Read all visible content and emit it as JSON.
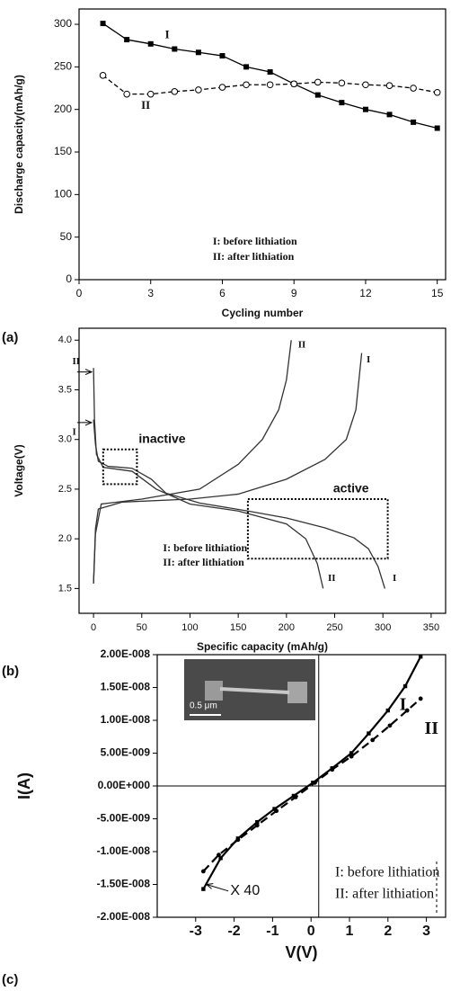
{
  "chart_data": [
    {
      "type": "line",
      "panel_label": "(a)",
      "xlabel": "Cycling number",
      "ylabel": "Discharge capacity(mAh/g)",
      "x": [
        1,
        2,
        3,
        4,
        5,
        6,
        7,
        8,
        9,
        10,
        11,
        12,
        13,
        14,
        15
      ],
      "xlim": [
        0,
        15.35
      ],
      "ylim": [
        0,
        318
      ],
      "xticks": [
        0,
        3,
        6,
        9,
        12,
        15
      ],
      "yticks": [
        0,
        50,
        100,
        150,
        200,
        250,
        300
      ],
      "series": [
        {
          "name": "I",
          "color": "#000000",
          "marker": "square",
          "line_style": "solid",
          "values": [
            301,
            282,
            277,
            271,
            267,
            263,
            250,
            244,
            230,
            217,
            208,
            200,
            194,
            185,
            178
          ]
        },
        {
          "name": "II",
          "color": "#000000",
          "marker": "open-circle",
          "line_style": "dashed",
          "values": [
            240,
            218,
            218,
            221,
            223,
            226,
            229,
            229,
            230,
            232,
            231,
            229,
            228,
            225,
            220
          ]
        }
      ],
      "annotations": [
        "I: before lithiation",
        "II: after lithiation"
      ]
    },
    {
      "type": "line",
      "panel_label": "(b)",
      "xlabel": "Specific capacity (mAh/g)",
      "ylabel": "Voltage(V)",
      "xlim": [
        -15,
        365
      ],
      "ylim": [
        1.25,
        4.12
      ],
      "xticks": [
        0,
        50,
        100,
        150,
        200,
        250,
        300,
        350
      ],
      "yticks": [
        1.5,
        {
          "value": 2,
          "label": "2.0"
        },
        2.5,
        {
          "value": 3,
          "label": "3.0"
        },
        3.5,
        {
          "value": 4,
          "label": "4.0"
        }
      ],
      "series": [
        {
          "name": "I",
          "color": "#333333",
          "line_style": "solid",
          "x": [
            0,
            2,
            5,
            15,
            40,
            60,
            75,
            110,
            160,
            200,
            240,
            270,
            285,
            295,
            302
          ],
          "values": [
            3.2,
            2.95,
            2.78,
            2.73,
            2.71,
            2.6,
            2.46,
            2.36,
            2.28,
            2.21,
            2.11,
            2.01,
            1.9,
            1.72,
            1.5
          ]
        },
        {
          "name": "I",
          "color": "#333333",
          "line_style": "solid",
          "x": [
            0,
            2,
            5,
            30,
            100,
            150,
            200,
            240,
            262,
            272,
            278
          ],
          "values": [
            1.55,
            2.1,
            2.3,
            2.37,
            2.4,
            2.45,
            2.6,
            2.8,
            3.0,
            3.3,
            3.87
          ]
        },
        {
          "name": "II",
          "color": "#333333",
          "line_style": "solid",
          "x": [
            0,
            1,
            3,
            10,
            40,
            65,
            100,
            150,
            200,
            220,
            232,
            238
          ],
          "values": [
            3.72,
            3.2,
            2.85,
            2.72,
            2.68,
            2.5,
            2.35,
            2.28,
            2.15,
            2.0,
            1.75,
            1.5
          ]
        },
        {
          "name": "II",
          "color": "#333333",
          "line_style": "solid",
          "x": [
            0,
            2,
            8,
            50,
            110,
            150,
            175,
            192,
            200,
            205
          ],
          "values": [
            1.55,
            2.05,
            2.35,
            2.4,
            2.5,
            2.75,
            3.0,
            3.3,
            3.6,
            4.0
          ]
        }
      ],
      "regions": [
        {
          "label": "inactive",
          "x": [
            10,
            45
          ],
          "y": [
            2.55,
            2.9
          ]
        },
        {
          "label": "active",
          "x": [
            160,
            305
          ],
          "y": [
            1.8,
            2.4
          ]
        }
      ],
      "annotations": [
        "I: before lithiation",
        "II: after lithiation"
      ]
    },
    {
      "type": "line",
      "panel_label": "(c)",
      "xlabel": "V(V)",
      "ylabel": "I(A)",
      "xlim": [
        -4,
        3.5
      ],
      "ylim": [
        -2e-08,
        2e-08
      ],
      "xticks": [
        -3,
        -2,
        -1,
        0,
        1,
        2,
        3
      ],
      "yticks": [
        {
          "value": -2e-08,
          "label": "-2.00E-008"
        },
        {
          "value": -1.5e-08,
          "label": "-1.50E-008"
        },
        {
          "value": -1e-08,
          "label": "-1.00E-008"
        },
        {
          "value": -5e-09,
          "label": "-5.00E-009"
        },
        {
          "value": 0,
          "label": "0.00E+000"
        },
        {
          "value": 5e-09,
          "label": "5.00E-009"
        },
        {
          "value": 1e-08,
          "label": "1.00E-008"
        },
        {
          "value": 1.5e-08,
          "label": "1.50E-008"
        },
        {
          "value": 2e-08,
          "label": "2.00E-008"
        }
      ],
      "crosshair": [
        0.2,
        0
      ],
      "series": [
        {
          "name": "I",
          "color": "#000000",
          "marker": "square",
          "line_style": "solid",
          "x": [
            -2.8,
            -2.35,
            -1.9,
            -1.4,
            -0.95,
            -0.45,
            0.05,
            0.55,
            1.05,
            1.5,
            2.0,
            2.45,
            2.85
          ],
          "values": [
            -1.57e-08,
            -1.1e-08,
            -8e-09,
            -5.5e-09,
            -3.5e-09,
            -1.5e-09,
            5e-10,
            2.7e-09,
            5e-09,
            8e-09,
            1.15e-08,
            1.52e-08,
            1.97e-08
          ]
        },
        {
          "name": "II",
          "color": "#000000",
          "marker": "circle",
          "line_style": "dashed",
          "x": [
            -2.8,
            -2.4,
            -1.9,
            -1.4,
            -0.9,
            -0.4,
            0.1,
            0.55,
            1.05,
            1.6,
            2.05,
            2.5,
            2.85
          ],
          "values": [
            -1.3e-08,
            -1.05e-08,
            -8.2e-09,
            -6e-09,
            -3.8e-09,
            -1.7e-09,
            5e-10,
            2.5e-09,
            4.5e-09,
            7e-09,
            9.2e-09,
            1.15e-08,
            1.33e-08
          ]
        }
      ],
      "inset_scale_label": "0.5 μm",
      "magnification_label": "X 40",
      "annotations": [
        "I: before lithiation",
        "II: after lithiation"
      ]
    }
  ]
}
